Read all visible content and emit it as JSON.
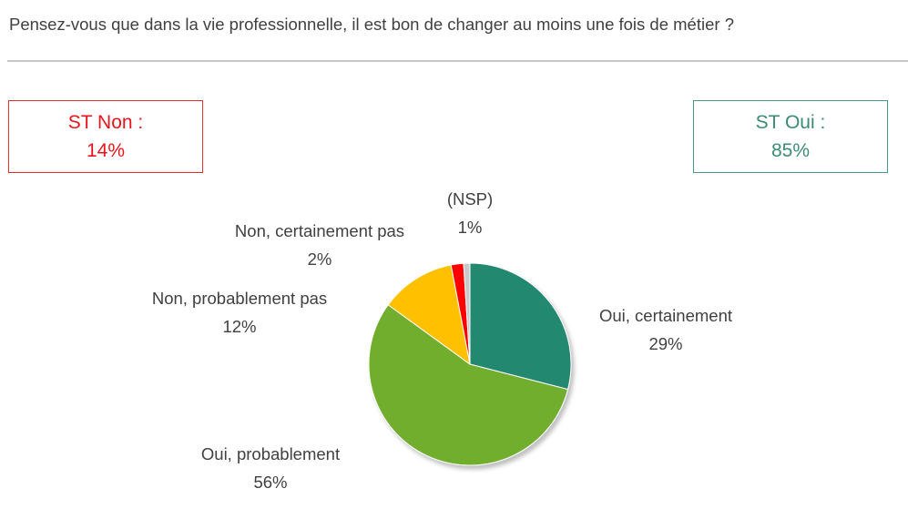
{
  "question": "Pensez-vous que dans la vie professionnelle, il est bon de changer au moins une fois de métier ?",
  "summary": {
    "non": {
      "label": "ST Non :",
      "value": "14%"
    },
    "oui": {
      "label": "ST Oui :",
      "value": "85%"
    }
  },
  "chart_data": {
    "type": "pie",
    "slices": [
      {
        "label": "Oui, certainement",
        "value": 29,
        "display": "29%",
        "color": "#22896f"
      },
      {
        "label": "Oui, probablement",
        "value": 56,
        "display": "56%",
        "color": "#72ae2d"
      },
      {
        "label": "Non, probablement pas",
        "value": 12,
        "display": "12%",
        "color": "#ffc000"
      },
      {
        "label": "Non, certainement pas",
        "value": 2,
        "display": "2%",
        "color": "#ff0000"
      },
      {
        "label": "(NSP)",
        "value": 1,
        "display": "1%",
        "color": "#c9c9c9"
      }
    ],
    "start": "12 o'clock",
    "direction": "clockwise"
  },
  "colors": {
    "non_accent": "#e8161c",
    "oui_accent": "#3b8b76"
  }
}
